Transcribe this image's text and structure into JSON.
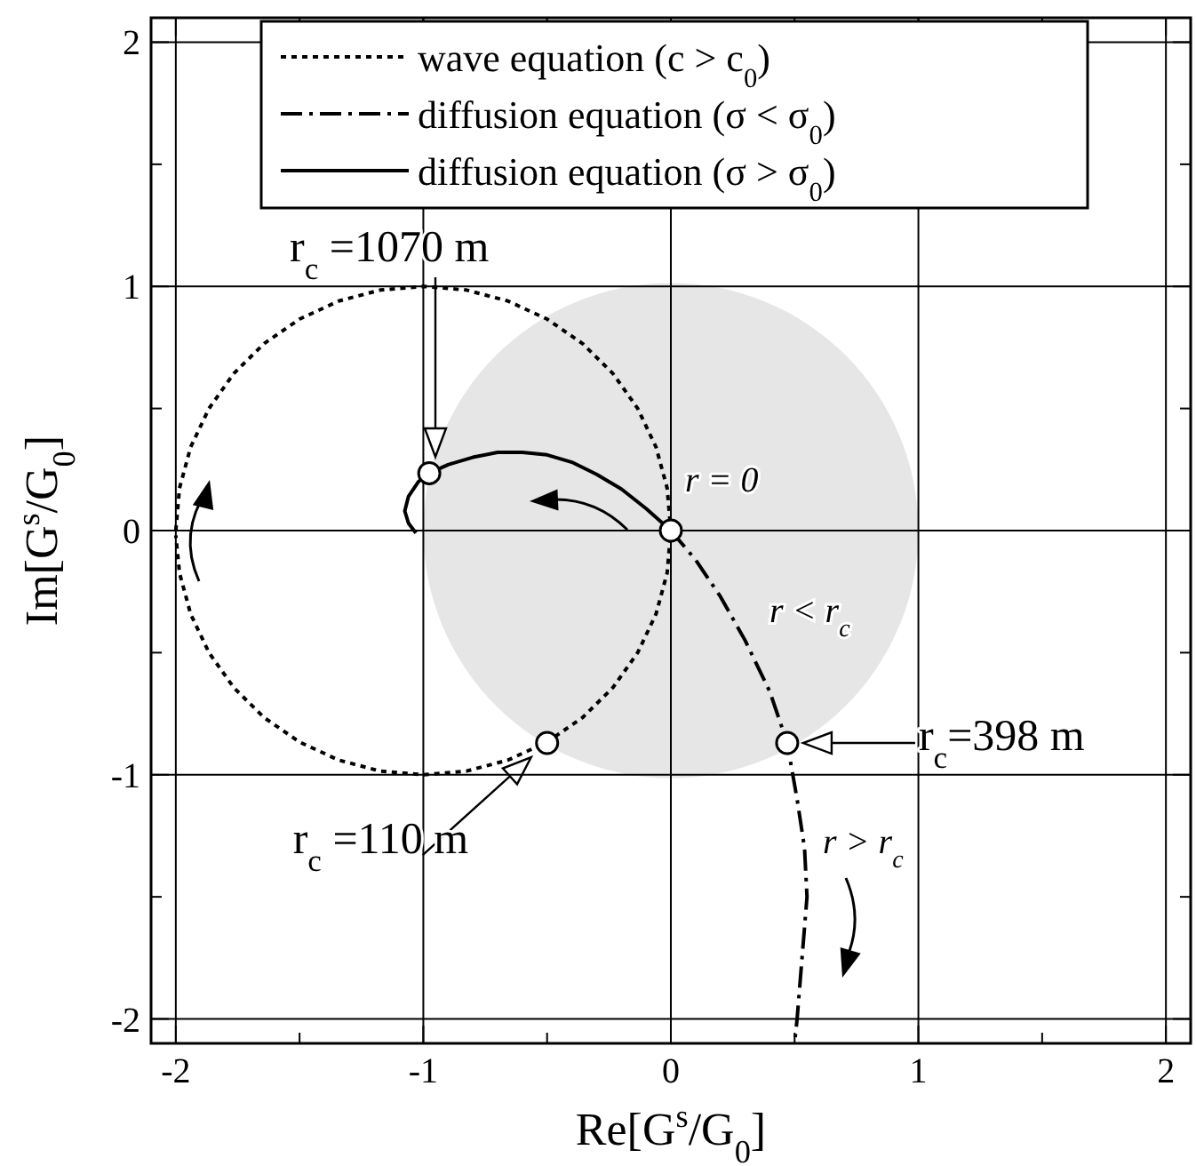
{
  "chart_data": {
    "type": "line",
    "xlabel": "Re[G$^{s}$/G$_{0}$]",
    "ylabel": "Im[G$^{s}$/G$_{0}$]",
    "xlim": [
      -2.1,
      2.1
    ],
    "ylim": [
      -2.1,
      2.1
    ],
    "xticks": [
      -2,
      {
        "value": -1.5,
        "label": null
      },
      -1,
      {
        "value": -0.5,
        "label": null
      },
      0,
      {
        "value": 0.5,
        "label": null
      },
      1,
      {
        "value": 1.5,
        "label": null
      },
      2
    ],
    "yticks": [
      -2,
      {
        "value": -1.5,
        "label": null
      },
      -1,
      {
        "value": -0.5,
        "label": null
      },
      0,
      {
        "value": 0.5,
        "label": null
      },
      1,
      {
        "value": 1.5,
        "label": null
      },
      2
    ],
    "grid": true,
    "legend": "top",
    "series": [
      {
        "name": "wave equation (c > c$_{0}$)",
        "color": "#000000",
        "line_style": "dotted",
        "marker": "none",
        "x": [
          -2,
          -1.985,
          -1.94,
          -1.866,
          -1.766,
          -1.643,
          -1.5,
          -1.342,
          -1.174,
          -1,
          -0.826,
          -0.658,
          -0.5,
          -0.357,
          -0.234,
          -0.134,
          -0.06,
          -0.015,
          0,
          -0.015,
          -0.06,
          -0.134,
          -0.234,
          -0.357,
          -0.5,
          -0.658,
          -0.826,
          -1,
          -1.174,
          -1.342,
          -1.5,
          -1.643,
          -1.766,
          -1.866,
          -1.94,
          -1.985,
          -2
        ],
        "values": [
          0,
          0.174,
          0.342,
          0.5,
          0.643,
          0.766,
          0.866,
          0.94,
          0.985,
          1,
          0.985,
          0.94,
          0.866,
          0.766,
          0.643,
          0.5,
          0.342,
          0.174,
          0,
          -0.174,
          -0.342,
          -0.5,
          -0.643,
          -0.766,
          -0.866,
          -0.94,
          -0.985,
          -1,
          -0.985,
          -0.94,
          -0.866,
          -0.766,
          -0.643,
          -0.5,
          -0.342,
          -0.174,
          -0.02
        ]
      },
      {
        "name": "diffusion equation (σ < σ$_{0}$)",
        "color": "#000000",
        "line_style": "dashdot",
        "marker": "none",
        "x": [
          0,
          0.1,
          0.2,
          0.3,
          0.4,
          0.47,
          0.51,
          0.54,
          0.55,
          0.53,
          0.51,
          0.5
        ],
        "values": [
          0,
          -0.12,
          -0.27,
          -0.45,
          -0.66,
          -0.87,
          -1.1,
          -1.3,
          -1.5,
          -1.75,
          -2,
          -2.1
        ]
      },
      {
        "name": "diffusion equation (σ > σ$_{0}$)",
        "color": "#000000",
        "line_style": "solid",
        "marker": "none",
        "x": [
          0,
          -0.1,
          -0.2,
          -0.3,
          -0.4,
          -0.5,
          -0.6,
          -0.7,
          -0.8,
          -0.9,
          -0.976,
          -1.02,
          -1.06,
          -1.075,
          -1.06,
          -1.03
        ],
        "values": [
          0,
          0.09,
          0.17,
          0.23,
          0.28,
          0.31,
          0.32,
          0.32,
          0.3,
          0.27,
          0.235,
          0.2,
          0.14,
          0.08,
          0.03,
          -0.01
        ]
      },
      {
        "type": "scatter",
        "color": "#ffffff",
        "marker": "circle",
        "x": [
          -0.976,
          0,
          -0.5,
          0.47
        ],
        "values": [
          0.235,
          0,
          -0.87,
          -0.87
        ]
      }
    ],
    "annotations": [
      "r$_{c}$ =1070 m",
      {
        "text": "r = 0",
        "x": 0,
        "y": 0
      },
      "r < r$_{c}$",
      "r > r$_{c}$",
      {
        "text": "r$_{c}$=398 m",
        "x": 0.47,
        "y": -0.87
      },
      {
        "text": "r$_{c}$ =110 m",
        "x": -0.5,
        "y": -0.87
      }
    ]
  }
}
